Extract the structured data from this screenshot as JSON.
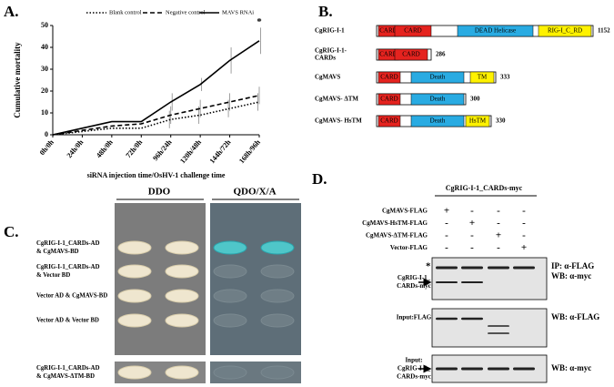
{
  "chart_data": {
    "type": "line",
    "panel_label": "A.",
    "annotation": "*",
    "xlabel": "siRNA injection time/OsHV-1 challenge time",
    "ylabel": "Cumulative mortality",
    "categories": [
      "0h/0h",
      "24h/0h",
      "48h/0h",
      "72h/0h",
      "96h/24h",
      "120h/48h",
      "144h/72h",
      "168h/96h"
    ],
    "ylim": [
      0,
      50
    ],
    "yticks": [
      0,
      10,
      20,
      30,
      40,
      50
    ],
    "legend": "top",
    "series": [
      {
        "name": "Blank control",
        "color": "#000000",
        "style": "dotted",
        "values": [
          0,
          1.5,
          3,
          3,
          7,
          9,
          12,
          15
        ],
        "errors": [
          0,
          0,
          0,
          0,
          4,
          4,
          4,
          4
        ]
      },
      {
        "name": "Negative control",
        "color": "#000000",
        "style": "dashed",
        "values": [
          0,
          2,
          4,
          5,
          9,
          12,
          15,
          18
        ],
        "errors": [
          0,
          0,
          0,
          0,
          4,
          4,
          4,
          4
        ]
      },
      {
        "name": "MAVS RNAi",
        "color": "#000000",
        "style": "solid",
        "values": [
          0,
          3,
          6,
          6,
          15,
          23,
          34,
          43
        ],
        "errors": [
          0,
          0,
          0,
          0,
          4,
          3,
          6,
          6
        ]
      }
    ]
  },
  "domains": {
    "panel_label": "B.",
    "proteins": [
      {
        "name": [
          "CgRIG-I-1"
        ],
        "length": 1152,
        "domains": [
          {
            "label": "CARD",
            "color": "#e5231f"
          },
          {
            "label": "CARD",
            "color": "#e5231f"
          },
          {
            "label": "DEAD Helicase",
            "color": "#29abe2"
          },
          {
            "label": "RIG-I_C_RD",
            "color": "#fff200"
          }
        ]
      },
      {
        "name": [
          "CgRIG-I-1-",
          "CARDs"
        ],
        "length": 286,
        "domains": [
          {
            "label": "CARD",
            "color": "#e5231f"
          },
          {
            "label": "CARD",
            "color": "#e5231f"
          }
        ]
      },
      {
        "name": [
          "CgMAVS"
        ],
        "length": 333,
        "domains": [
          {
            "label": "CARD",
            "color": "#e5231f"
          },
          {
            "label": "Death",
            "color": "#29abe2"
          },
          {
            "label": "TM",
            "color": "#fff200"
          }
        ]
      },
      {
        "name": [
          "CgMAVS- ΔTM"
        ],
        "length": 300,
        "domains": [
          {
            "label": "CARD",
            "color": "#e5231f"
          },
          {
            "label": "Death",
            "color": "#29abe2"
          }
        ]
      },
      {
        "name": [
          "CgMAVS- HsTM"
        ],
        "length": 330,
        "domains": [
          {
            "label": "CARD",
            "color": "#e5231f"
          },
          {
            "label": "Death",
            "color": "#29abe2"
          },
          {
            "label": "HsTM",
            "color": "#fff200"
          }
        ]
      }
    ]
  },
  "yeast": {
    "panel_label": "C.",
    "media": [
      "DDO",
      "QDO/X/A"
    ],
    "rows": [
      [
        "CgRIG-I-1_CARDs-AD",
        "& CgMAVS-BD"
      ],
      [
        "CgRIG-I-1_CARDs-AD",
        "& Vector BD"
      ],
      [
        "Vector AD & CgMAVS-BD"
      ],
      [
        "Vector AD & Vector BD"
      ],
      [
        "CgRIG-I-1_CARDs-AD",
        "& CgMAVS-ΔTM-BD"
      ]
    ]
  },
  "western": {
    "panel_label": "D.",
    "title": "CgRIG-I-1_CARDs-myc",
    "constructs": [
      {
        "name": "CgMAVS-FLAG",
        "signs": [
          "+",
          "-",
          "-",
          "-"
        ]
      },
      {
        "name": "CgMAVS-HsTM-FLAG",
        "signs": [
          "-",
          "+",
          "-",
          "-"
        ]
      },
      {
        "name": "CgMAVS-ΔTM-FLAG",
        "signs": [
          "-",
          "-",
          "+",
          "-"
        ]
      },
      {
        "name": "Vector-FLAG",
        "signs": [
          "-",
          "-",
          "-",
          "+"
        ]
      }
    ],
    "blots": [
      {
        "star": "*",
        "left": [
          "CgRIG-I-1_",
          "CARDs-myc"
        ],
        "right": [
          "IP: α-FLAG",
          "WB: α-myc"
        ]
      },
      {
        "left": [
          "Input:FLAG"
        ],
        "right": [
          "WB: α-FLAG"
        ]
      },
      {
        "left": [
          "Input:",
          "CgRIG-I-1_",
          "CARDs-myc"
        ],
        "right": [
          "WB: α-myc"
        ]
      }
    ]
  }
}
